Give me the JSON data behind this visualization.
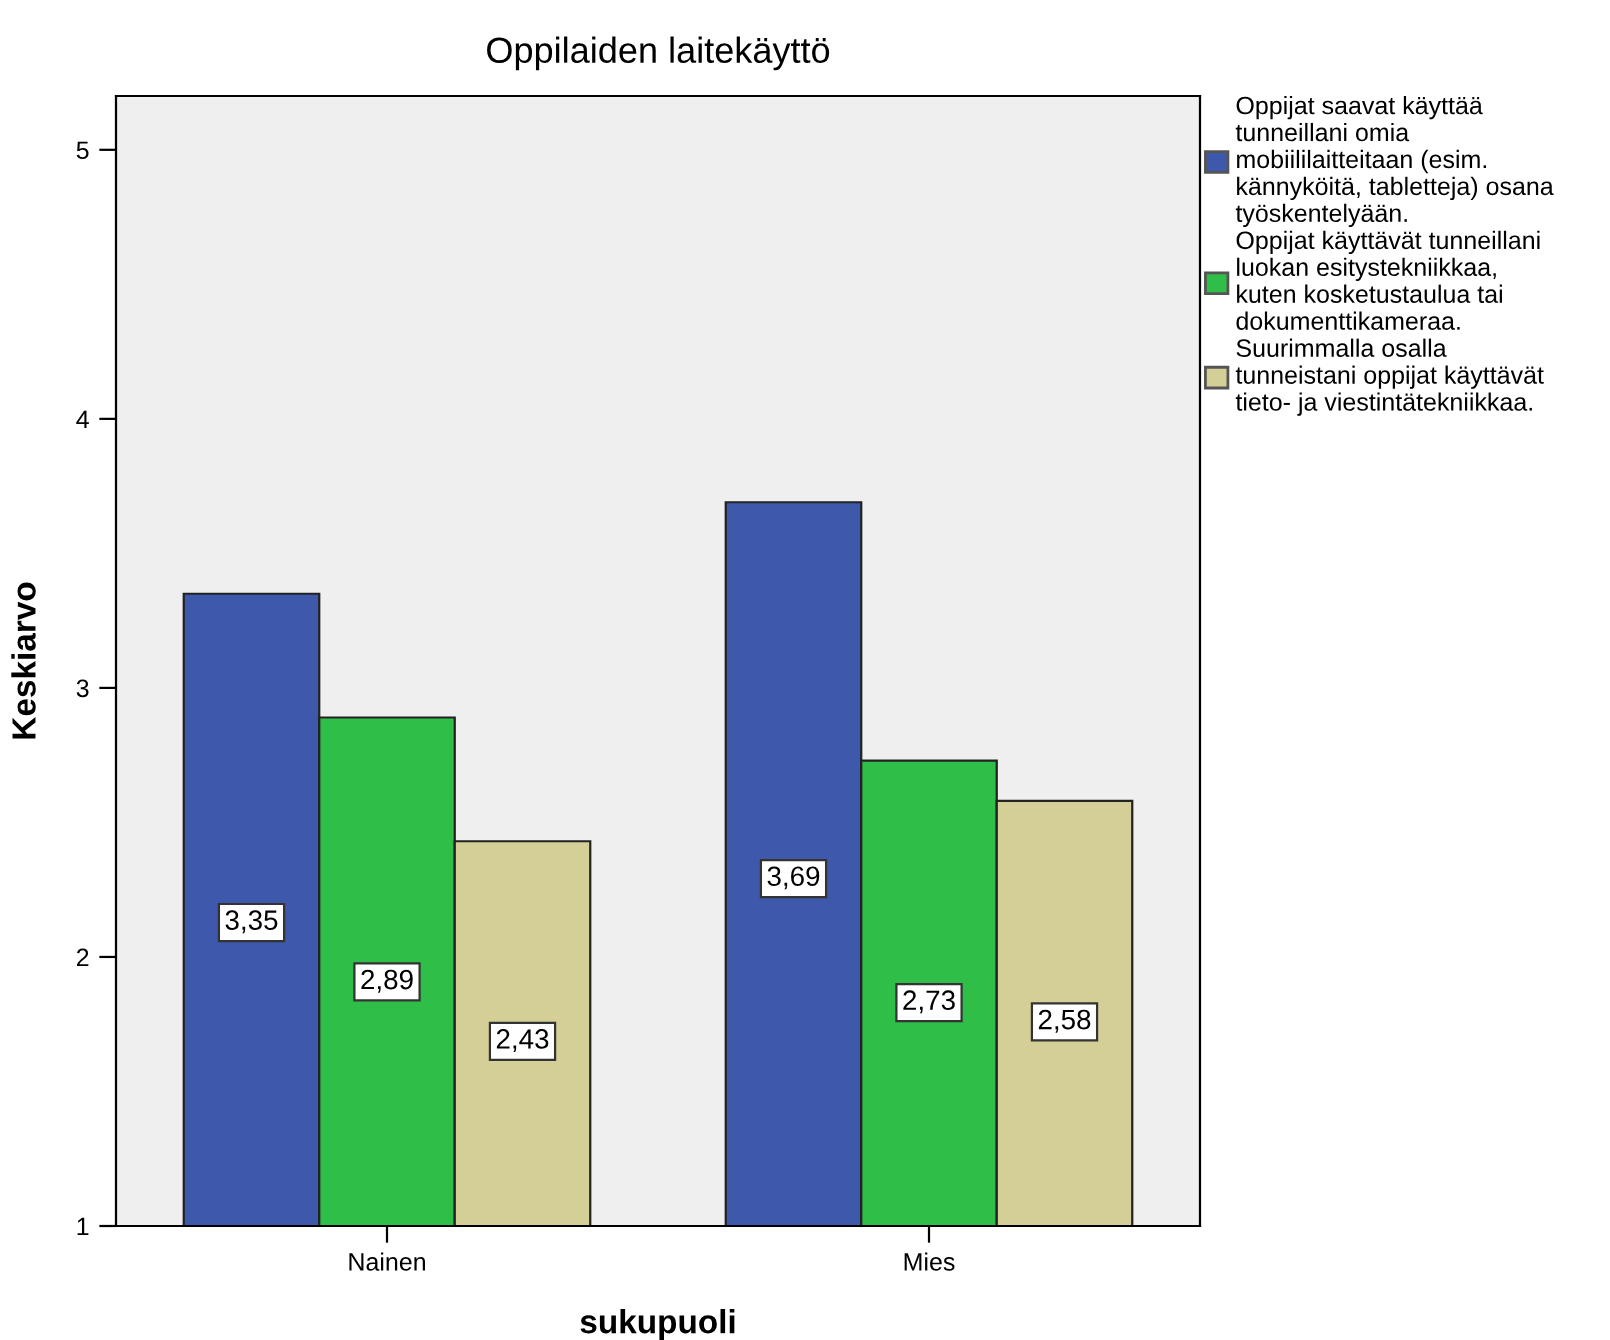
{
  "chart_data": {
    "type": "bar",
    "title": "Oppilaiden laitekäyttö",
    "xlabel": "sukupuoli",
    "ylabel": "Keskiarvo",
    "categories": [
      "Nainen",
      "Mies"
    ],
    "series": [
      {
        "name": "Oppijat saavat käyttää\ntunneillani omia\nmobiililaitteitaan (esim.\nkännyköitä, tabletteja) osana\ntyöskentelyään.",
        "color": "#3e58ac",
        "values": [
          3.35,
          3.69
        ],
        "value_labels": [
          "3,35",
          "3,69"
        ]
      },
      {
        "name": "Oppijat käyttävät tunneillani\nluokan esitystekniikkaa,\nkuten kosketustaulua tai\ndokumenttikameraa.",
        "color": "#2fbe48",
        "values": [
          2.89,
          2.73
        ],
        "value_labels": [
          "2,89",
          "2,73"
        ]
      },
      {
        "name": "Suurimmalla osalla\ntunneistani oppijat käyttävät\ntieto- ja viestintätekniikkaa.",
        "color": "#d4cf96",
        "values": [
          2.43,
          2.58
        ],
        "value_labels": [
          "2,43",
          "2,58"
        ]
      }
    ],
    "ylim": [
      1,
      5.2
    ],
    "yticks": [
      1,
      2,
      3,
      4,
      5
    ],
    "grid": false,
    "legend": "right"
  }
}
